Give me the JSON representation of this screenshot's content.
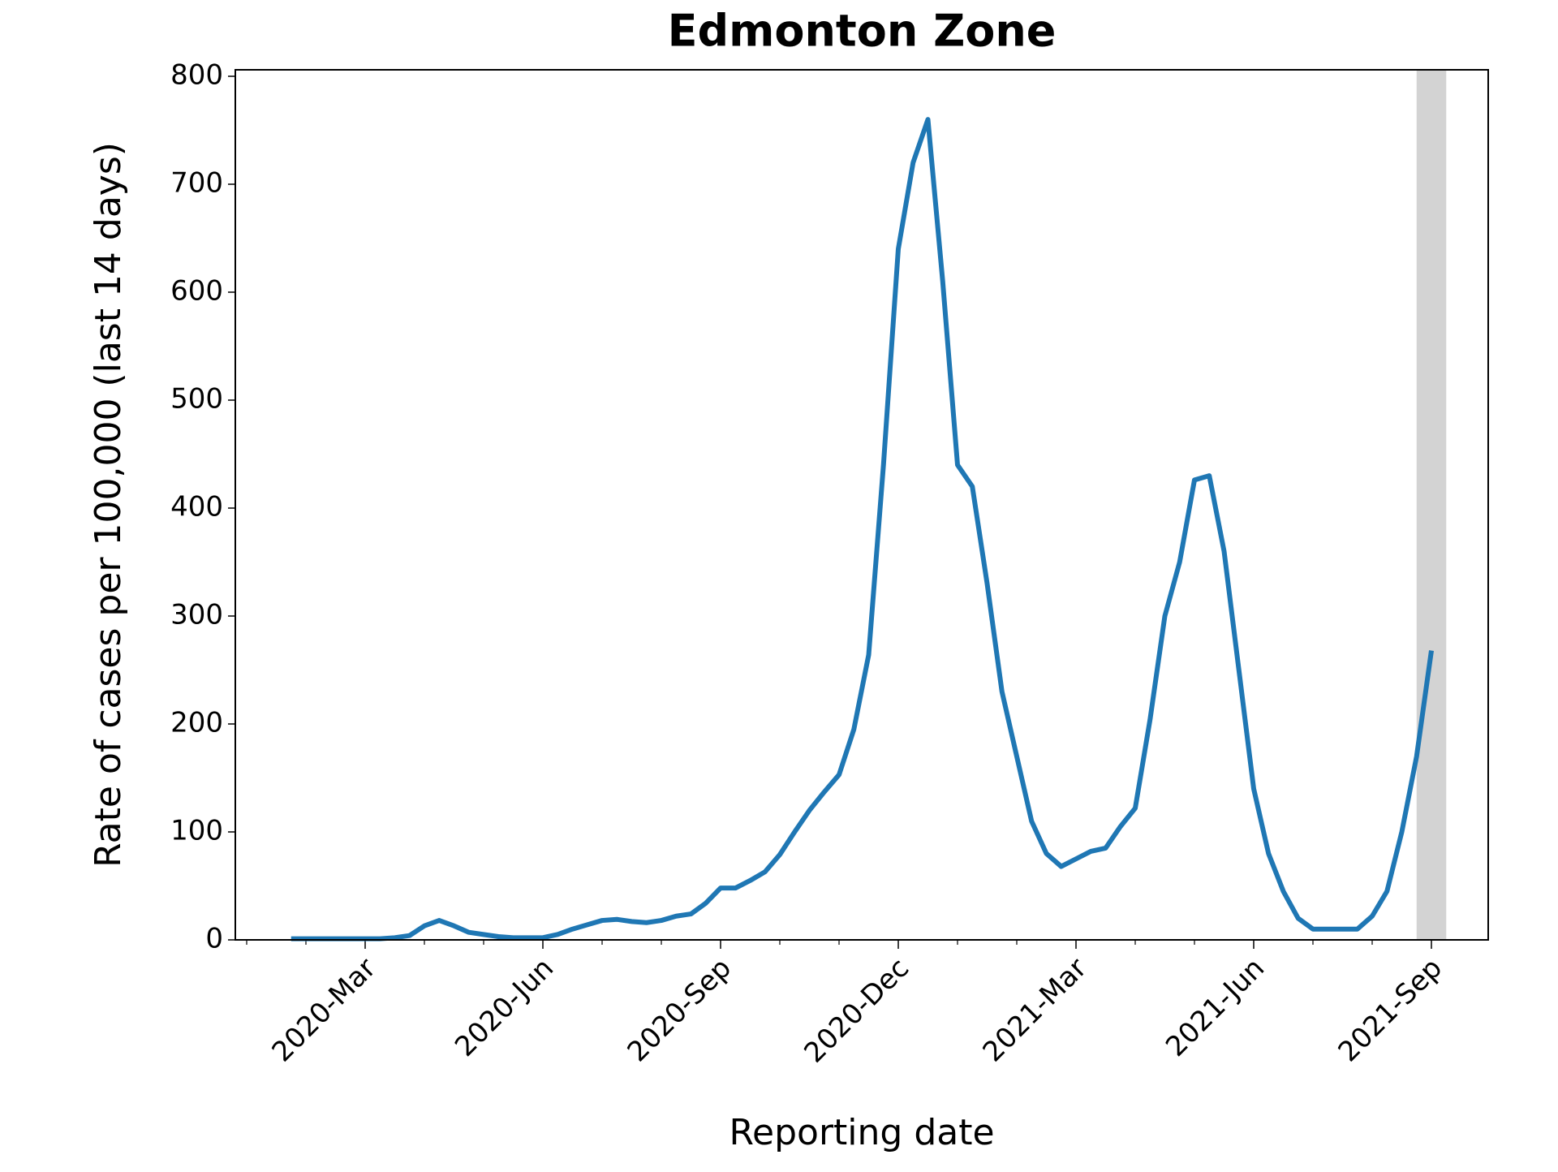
{
  "chart_data": {
    "type": "line",
    "title": "Edmonton Zone",
    "x_label": "Reporting date",
    "y_label": "Rate of cases per 100,000 (last 14 days)",
    "categories": [
      null,
      null,
      null,
      null,
      null,
      null,
      null,
      null,
      "2020-Mar",
      null,
      null,
      null,
      null,
      null,
      null,
      null,
      null,
      null,
      null,
      null,
      "2020-Jun",
      null,
      null,
      null,
      null,
      null,
      null,
      null,
      null,
      null,
      null,
      null,
      "2020-Sep",
      null,
      null,
      null,
      null,
      null,
      null,
      null,
      null,
      null,
      null,
      null,
      "2020-Dec",
      null,
      null,
      null,
      null,
      null,
      null,
      null,
      null,
      null,
      null,
      null,
      "2021-Mar",
      null,
      null,
      null,
      null,
      null,
      null,
      null,
      null,
      null,
      null,
      null,
      "2021-Jun",
      null,
      null,
      null,
      null,
      null,
      null,
      null,
      null,
      null,
      null,
      null,
      "2021-Sep"
    ],
    "series": [
      {
        "name": "Rate",
        "color": "#1f77b4",
        "values": [
          null,
          null,
          null,
          1,
          1,
          1,
          1,
          1,
          1,
          1,
          2,
          4,
          13,
          18,
          13,
          7,
          5,
          3,
          2,
          2,
          2,
          5,
          10,
          14,
          18,
          19,
          17,
          16,
          18,
          22,
          24,
          34,
          48,
          48,
          55,
          63,
          79,
          100,
          120,
          137,
          153,
          195,
          264,
          440,
          640,
          720,
          760,
          610,
          440,
          420,
          330,
          230,
          170,
          110,
          80,
          68,
          75,
          82,
          85,
          105,
          122,
          204,
          300,
          350,
          426,
          430,
          360,
          250,
          140,
          80,
          45,
          20,
          10,
          10,
          10,
          10,
          22,
          45,
          100,
          170,
          268
        ]
      }
    ],
    "ylim": [
      0,
      806
    ],
    "yticks": [
      0,
      100,
      200,
      300,
      400,
      500,
      600,
      700,
      800
    ]
  }
}
